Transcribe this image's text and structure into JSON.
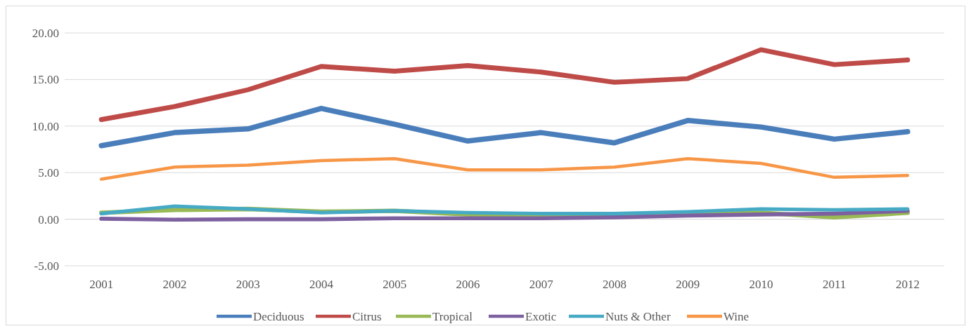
{
  "chart_data": {
    "type": "line",
    "categories": [
      "2001",
      "2002",
      "2003",
      "2004",
      "2005",
      "2006",
      "2007",
      "2008",
      "2009",
      "2010",
      "2011",
      "2012"
    ],
    "series": [
      {
        "name": "Deciduous",
        "color": "#4a7ebb",
        "values": [
          7.9,
          9.3,
          9.7,
          11.9,
          10.2,
          8.4,
          9.3,
          8.2,
          10.6,
          9.9,
          8.6,
          9.4
        ]
      },
      {
        "name": "Citrus",
        "color": "#be4b48",
        "values": [
          10.7,
          12.1,
          13.9,
          16.4,
          15.9,
          16.5,
          15.8,
          14.7,
          15.1,
          18.2,
          16.6,
          17.1
        ]
      },
      {
        "name": "Tropical",
        "color": "#98b954",
        "values": [
          0.7,
          1.0,
          1.1,
          0.8,
          0.9,
          0.5,
          0.5,
          0.5,
          0.5,
          0.7,
          0.2,
          0.7
        ]
      },
      {
        "name": "Exotic",
        "color": "#7d60a0",
        "values": [
          0.05,
          -0.05,
          0,
          0,
          0.1,
          0.1,
          0.1,
          0.2,
          0.4,
          0.5,
          0.6,
          0.9
        ]
      },
      {
        "name": "Nuts & Other",
        "color": "#46aac5",
        "values": [
          0.6,
          1.4,
          1.1,
          0.7,
          0.9,
          0.7,
          0.6,
          0.6,
          0.8,
          1.1,
          1.0,
          1.1
        ]
      },
      {
        "name": "Wine",
        "color": "#f79646",
        "values": [
          4.3,
          5.6,
          5.8,
          6.3,
          6.5,
          5.3,
          5.3,
          5.6,
          6.5,
          6.0,
          4.5,
          4.7
        ]
      }
    ],
    "ylim": [
      -5,
      20
    ],
    "yticks": [
      {
        "value": -5,
        "label": "-5.00"
      },
      {
        "value": 0,
        "label": "0.00"
      },
      {
        "value": 5,
        "label": "5.00"
      },
      {
        "value": 10,
        "label": "10.00"
      },
      {
        "value": 15,
        "label": "15.00"
      },
      {
        "value": 20,
        "label": "20.00"
      }
    ],
    "grid": "y",
    "legend": "bottom",
    "marker": "none",
    "line_style": "solid"
  }
}
